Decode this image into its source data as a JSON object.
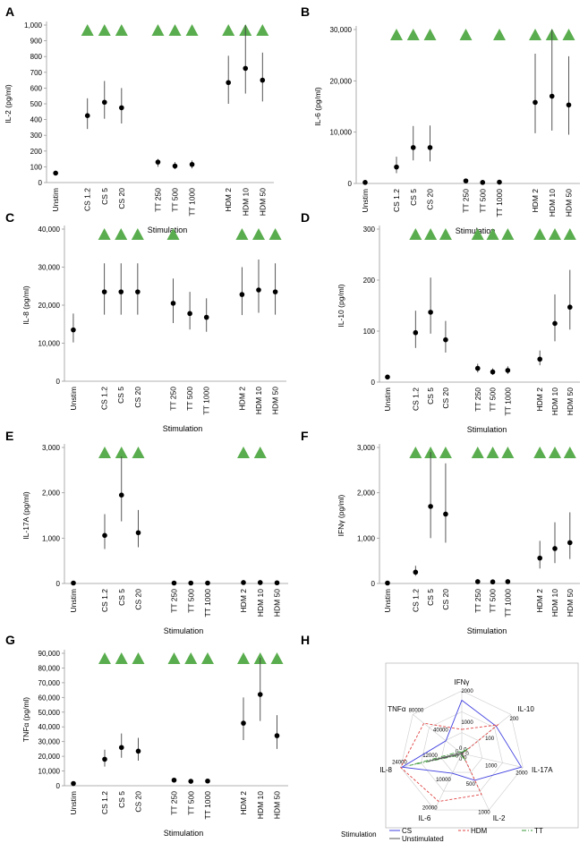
{
  "chart_data": [
    {
      "panel": "A",
      "type": "scatter",
      "categories": [
        "Unstim",
        "CS 1.2",
        "CS 5",
        "CS 20",
        "TT 250",
        "TT 500",
        "TT 1000",
        "HDM 2",
        "HDM 10",
        "HDM 50"
      ],
      "ylabel": "IL-2 (pg/ml)",
      "xlabel": "Stimulation",
      "yticks": [
        0,
        100,
        200,
        300,
        400,
        500,
        600,
        700,
        800,
        900,
        1000
      ],
      "ytick_labels": [
        "0",
        "100",
        "200",
        "300",
        "400",
        "500",
        "600",
        "700",
        "800",
        "900",
        "1,000"
      ],
      "ylim": [
        0,
        1000
      ],
      "values": [
        60,
        425,
        510,
        475,
        130,
        105,
        115,
        635,
        725,
        650
      ],
      "err_low": [
        50,
        340,
        405,
        375,
        100,
        85,
        90,
        500,
        565,
        515
      ],
      "err_high": [
        70,
        535,
        645,
        600,
        150,
        130,
        140,
        805,
        1000,
        825
      ],
      "significant": [
        false,
        true,
        true,
        true,
        true,
        true,
        true,
        true,
        true,
        true
      ]
    },
    {
      "panel": "B",
      "type": "scatter",
      "categories": [
        "Unstim",
        "CS 1.2",
        "CS 5",
        "CS 20",
        "TT 250",
        "TT 500",
        "TT 1000",
        "HDM 2",
        "HDM 10",
        "HDM 50"
      ],
      "ylabel": "IL-6 (pg/ml)",
      "xlabel": "Stimulation",
      "yticks": [
        0,
        10000,
        20000,
        30000
      ],
      "ytick_labels": [
        "0",
        "10,000",
        "20,000",
        "30,000"
      ],
      "ylim": [
        0,
        30000
      ],
      "values": [
        200,
        3200,
        7000,
        7000,
        500,
        200,
        250,
        15800,
        17000,
        15300
      ],
      "err_low": [
        100,
        2000,
        4500,
        4300,
        300,
        100,
        150,
        9800,
        10300,
        9500
      ],
      "err_high": [
        300,
        5200,
        11200,
        11300,
        700,
        300,
        400,
        25300,
        30000,
        24800
      ],
      "significant": [
        false,
        true,
        true,
        true,
        true,
        false,
        true,
        true,
        true,
        true
      ]
    },
    {
      "panel": "C",
      "type": "scatter",
      "categories": [
        "Unstim",
        "CS 1.2",
        "CS 5",
        "CS 20",
        "TT 250",
        "TT 500",
        "TT 1000",
        "HDM 2",
        "HDM 10",
        "HDM 50"
      ],
      "ylabel": "IL-8 (pg/ml)",
      "xlabel": "Stimulation",
      "yticks": [
        0,
        10000,
        20000,
        30000,
        40000
      ],
      "ytick_labels": [
        "0",
        "10,000",
        "20,000",
        "30,000",
        "40,000"
      ],
      "ylim": [
        0,
        40000
      ],
      "values": [
        13500,
        23500,
        23500,
        23500,
        20500,
        17800,
        16800,
        22800,
        24000,
        23500
      ],
      "err_low": [
        10200,
        17500,
        17500,
        17500,
        15300,
        13600,
        13000,
        17400,
        18000,
        17500
      ],
      "err_high": [
        17800,
        31000,
        31000,
        31000,
        27000,
        23500,
        21800,
        30000,
        32000,
        31000
      ],
      "significant": [
        false,
        true,
        true,
        true,
        true,
        false,
        false,
        true,
        true,
        true
      ]
    },
    {
      "panel": "D",
      "type": "scatter",
      "categories": [
        "Unstim",
        "CS 1.2",
        "CS 5",
        "CS 20",
        "TT 250",
        "TT 500",
        "TT 1000",
        "HDM 2",
        "HDM 10",
        "HDM 50"
      ],
      "ylabel": "IL-10 (pg/ml)",
      "xlabel": "Stimulation",
      "yticks": [
        0,
        100,
        200,
        300
      ],
      "ytick_labels": [
        "0",
        "100",
        "200",
        "300"
      ],
      "ylim": [
        0,
        300
      ],
      "values": [
        10,
        97,
        137,
        83,
        27,
        20,
        23,
        45,
        115,
        147
      ],
      "err_low": [
        7,
        67,
        95,
        58,
        19,
        14,
        16,
        33,
        80,
        103
      ],
      "err_high": [
        13,
        140,
        205,
        120,
        36,
        27,
        31,
        62,
        172,
        220
      ],
      "significant": [
        false,
        true,
        true,
        true,
        true,
        true,
        true,
        true,
        true,
        true
      ]
    },
    {
      "panel": "E",
      "type": "scatter",
      "categories": [
        "Unstim",
        "CS 1.2",
        "CS 5",
        "CS 20",
        "TT 250",
        "TT 500",
        "TT 1000",
        "HDM 2",
        "HDM 10",
        "HDM 50"
      ],
      "ylabel": "IL-17A (pg/ml)",
      "xlabel": "Stimulation",
      "yticks": [
        0,
        1000,
        2000,
        3000
      ],
      "ytick_labels": [
        "0",
        "1,000",
        "2,000",
        "3,000"
      ],
      "ylim": [
        0,
        3000
      ],
      "values": [
        10,
        1060,
        1950,
        1120,
        10,
        10,
        10,
        20,
        20,
        15
      ],
      "err_low": [
        5,
        760,
        1370,
        800,
        5,
        5,
        5,
        10,
        10,
        8
      ],
      "err_high": [
        15,
        1530,
        2800,
        1620,
        15,
        15,
        15,
        30,
        30,
        25
      ],
      "significant": [
        false,
        true,
        true,
        true,
        false,
        false,
        false,
        true,
        true,
        false
      ]
    },
    {
      "panel": "F",
      "type": "scatter",
      "categories": [
        "Unstim",
        "CS 1.2",
        "CS 5",
        "CS 20",
        "TT 250",
        "TT 500",
        "TT 1000",
        "HDM 2",
        "HDM 10",
        "HDM 50"
      ],
      "ylabel": "IFNγ (pg/ml)",
      "xlabel": "Stimulation",
      "yticks": [
        0,
        1000,
        2000,
        3000
      ],
      "ytick_labels": [
        "0",
        "1,000",
        "2,000",
        "3,000"
      ],
      "ylim": [
        0,
        3000
      ],
      "values": [
        10,
        250,
        1700,
        1530,
        40,
        35,
        40,
        560,
        770,
        900
      ],
      "err_low": [
        5,
        170,
        1000,
        900,
        25,
        20,
        25,
        330,
        450,
        540
      ],
      "err_high": [
        15,
        390,
        2900,
        2650,
        60,
        55,
        60,
        940,
        1350,
        1570
      ],
      "significant": [
        false,
        true,
        true,
        true,
        true,
        true,
        true,
        true,
        true,
        true
      ]
    },
    {
      "panel": "G",
      "type": "scatter",
      "categories": [
        "Unstim",
        "CS 1.2",
        "CS 5",
        "CS 20",
        "TT 250",
        "TT 500",
        "TT 1000",
        "HDM 2",
        "HDM 10",
        "HDM 50"
      ],
      "ylabel": "TNFα (pg/ml)",
      "xlabel": "Stimulation",
      "yticks": [
        0,
        10000,
        20000,
        30000,
        40000,
        50000,
        60000,
        70000,
        80000,
        90000
      ],
      "ytick_labels": [
        "0",
        "10,000",
        "20,000",
        "30,000",
        "40,000",
        "50,000",
        "60,000",
        "70,000",
        "80,000",
        "90,000"
      ],
      "ylim": [
        0,
        90000
      ],
      "values": [
        1500,
        18000,
        26000,
        23500,
        3800,
        3000,
        3200,
        42500,
        62000,
        34000
      ],
      "err_low": [
        1000,
        13000,
        19000,
        17000,
        2800,
        2200,
        2400,
        31000,
        44000,
        25000
      ],
      "err_high": [
        2000,
        24500,
        35500,
        32500,
        5000,
        4000,
        4200,
        60000,
        87000,
        48000
      ],
      "significant": [
        false,
        true,
        true,
        true,
        true,
        true,
        true,
        true,
        true,
        true
      ]
    },
    {
      "panel": "H",
      "type": "radar",
      "axes": [
        {
          "name": "IFNγ",
          "max": 2000,
          "ticks": [
            "0",
            "1000",
            "2000"
          ]
        },
        {
          "name": "IL-10",
          "max": 200,
          "ticks": [
            "0",
            "100",
            "200"
          ]
        },
        {
          "name": "IL-17A",
          "max": 2000,
          "ticks": [
            "0",
            "1000",
            "2000"
          ]
        },
        {
          "name": "IL-2",
          "max": 1000,
          "ticks": [
            "0",
            "500",
            "1000"
          ]
        },
        {
          "name": "IL-6",
          "max": 20000,
          "ticks": [
            "0",
            "10000",
            "20000"
          ]
        },
        {
          "name": "IL-8",
          "max": 24000,
          "ticks": [
            "0",
            "12000",
            "24000"
          ]
        },
        {
          "name": "TNFα",
          "max": 80000,
          "ticks": [
            "0",
            "40000",
            "80000"
          ]
        }
      ],
      "legend_title": "Stimulation",
      "series": [
        {
          "name": "CS",
          "color": "#4040e0",
          "dash": "",
          "values": [
            1700,
            140,
            1950,
            475,
            7000,
            23500,
            26000
          ]
        },
        {
          "name": "HDM",
          "color": "#e04040",
          "dash": "3,2",
          "values": [
            770,
            147,
            20,
            725,
            17000,
            24000,
            62000
          ]
        },
        {
          "name": "TT",
          "color": "#3a9a3a",
          "dash": "5,2,1,2",
          "values": [
            40,
            27,
            10,
            130,
            500,
            20500,
            3800
          ]
        },
        {
          "name": "Unstimulated",
          "color": "#555555",
          "dash": "",
          "values": [
            10,
            10,
            10,
            60,
            200,
            13500,
            1500
          ]
        }
      ]
    }
  ]
}
